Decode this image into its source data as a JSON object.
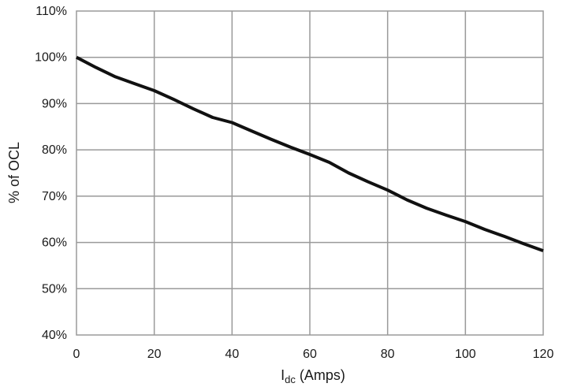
{
  "chart_data": {
    "type": "line",
    "title": "",
    "xlabel_main": "I",
    "xlabel_sub": "dc",
    "xlabel_rest": " (Amps)",
    "ylabel": "% of OCL",
    "xlim": [
      0,
      120
    ],
    "ylim": [
      40,
      110
    ],
    "x_ticks": [
      0,
      20,
      40,
      60,
      80,
      100,
      120
    ],
    "y_ticks": [
      40,
      50,
      60,
      70,
      80,
      90,
      100,
      110
    ],
    "y_tick_suffix": "%",
    "grid": true,
    "line_color": "#111111",
    "series": [
      {
        "x": [
          0,
          5,
          10,
          15,
          20,
          25,
          30,
          35,
          40,
          45,
          50,
          55,
          60,
          65,
          70,
          75,
          80,
          85,
          90,
          95,
          100,
          105,
          110,
          115,
          120
        ],
        "values": [
          100,
          97.8,
          95.8,
          94.3,
          92.8,
          90.9,
          88.9,
          87.0,
          85.9,
          84.1,
          82.3,
          80.6,
          79.0,
          77.3,
          75.0,
          73.1,
          71.3,
          69.2,
          67.4,
          65.9,
          64.5,
          62.8,
          61.3,
          59.7,
          58.2
        ]
      }
    ]
  }
}
